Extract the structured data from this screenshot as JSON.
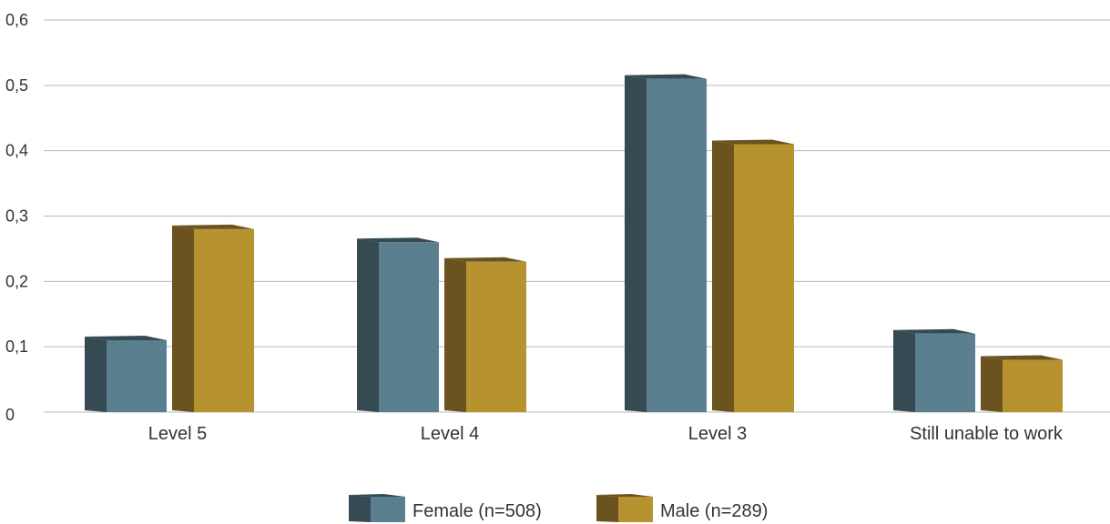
{
  "chart_data": {
    "type": "bar",
    "categories": [
      "Level 5",
      "Level 4",
      "Level 3",
      "Still unable to work"
    ],
    "series": [
      {
        "name": "Female (n=508)",
        "values": [
          0.11,
          0.26,
          0.51,
          0.12
        ],
        "color": "#5a7f8e",
        "side_color": "#354a53"
      },
      {
        "name": "Male (n=289)",
        "values": [
          0.28,
          0.23,
          0.41,
          0.08
        ],
        "color": "#b79330",
        "side_color": "#6b531f"
      }
    ],
    "ylim": [
      0,
      0.6
    ],
    "yticks": [
      "0",
      "0,1",
      "0,2",
      "0,3",
      "0,4",
      "0,5",
      "0,6"
    ],
    "grid": true,
    "legend_position": "bottom-center",
    "style": "3d"
  }
}
